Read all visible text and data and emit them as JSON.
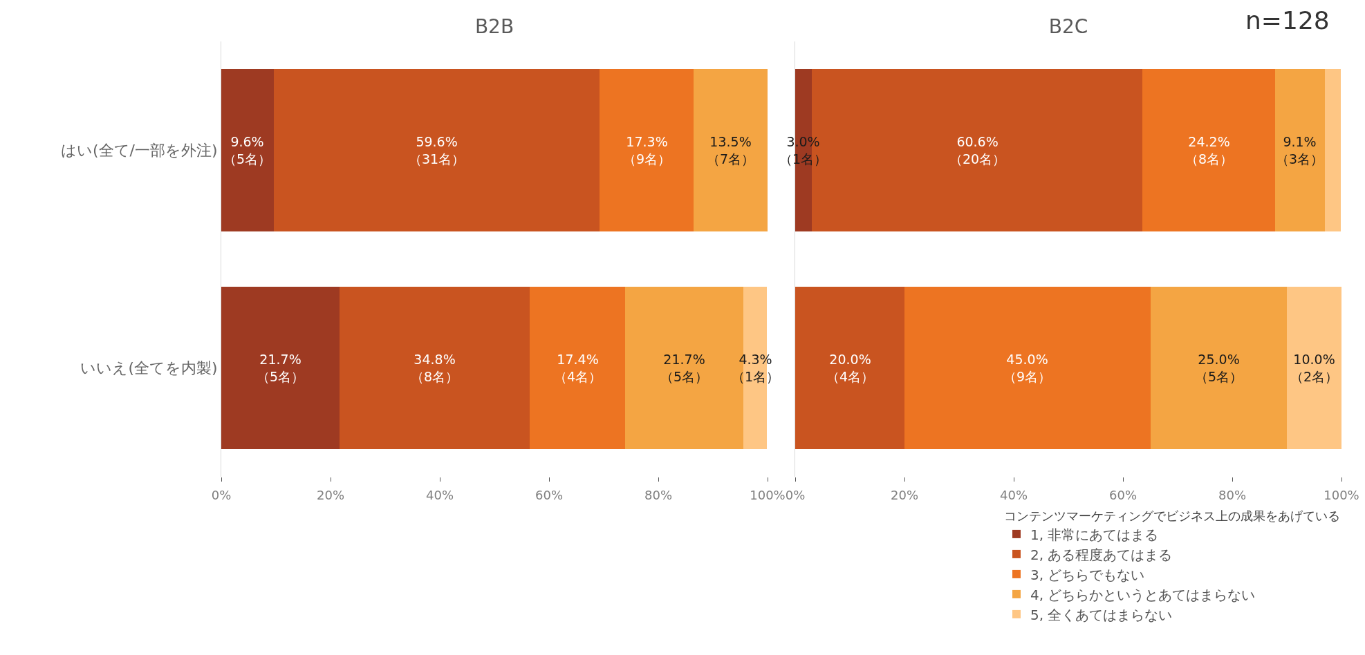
{
  "chart_data": [
    {
      "type": "bar",
      "title": "B2B",
      "orientation": "horizontal",
      "stacked": true,
      "categories": [
        "はい(全て/一部を外注)",
        "いいえ(全てを内製)"
      ],
      "series": [
        {
          "color": "#9e3a22",
          "values": [
            9.6,
            21.7
          ],
          "value_labels": [
            "9.6%\n（5名）",
            "21.7%\n（5名）"
          ]
        },
        {
          "color": "#c95420",
          "values": [
            59.6,
            34.8
          ],
          "value_labels": [
            "59.6%\n（31名）",
            "34.8%\n（8名）"
          ]
        },
        {
          "color": "#ed7422",
          "values": [
            17.3,
            17.4
          ],
          "value_labels": [
            "17.3%\n（9名）",
            "17.4%\n（4名）"
          ]
        },
        {
          "color": "#f4a543",
          "values": [
            13.5,
            21.7
          ],
          "value_labels": [
            "13.5%\n（7名）",
            "21.7%\n（5名）"
          ]
        },
        {
          "color": "#fec684",
          "values": [
            0,
            4.3
          ],
          "value_labels": [
            null,
            "4.3%\n（1名）"
          ]
        }
      ],
      "xlim": [
        0,
        100
      ],
      "xticks": [
        {
          "value": 0,
          "label": "0%"
        },
        {
          "value": 20,
          "label": "20%"
        },
        {
          "value": 40,
          "label": "40%"
        },
        {
          "value": 60,
          "label": "60%"
        },
        {
          "value": 80,
          "label": "80%"
        },
        {
          "value": 100,
          "label": "100%"
        }
      ],
      "legend": false
    },
    {
      "type": "bar",
      "title": "B2C",
      "orientation": "horizontal",
      "stacked": true,
      "categories": [
        "はい(全て/一部を外注)",
        "いいえ(全てを内製)"
      ],
      "series": [
        {
          "name": "1, 非常にあてはまる",
          "color": "#9e3a22",
          "values": [
            3.0,
            0
          ],
          "value_labels": [
            "3.0%\n（1名）",
            null
          ]
        },
        {
          "name": "2, ある程度あてはまる",
          "color": "#c95420",
          "values": [
            60.6,
            20.0
          ],
          "value_labels": [
            "60.6%\n（20名）",
            "20.0%\n（4名）"
          ]
        },
        {
          "name": "3, どちらでもない",
          "color": "#ed7422",
          "values": [
            24.2,
            45.0
          ],
          "value_labels": [
            "24.2%\n（8名）",
            "45.0%\n（9名）"
          ]
        },
        {
          "name": "4, どちらかというとあてはまらない",
          "color": "#f4a543",
          "values": [
            9.1,
            25.0
          ],
          "value_labels": [
            "9.1%\n（3名）",
            "25.0%\n（5名）"
          ]
        },
        {
          "name": "5, 全くあてはまらない",
          "color": "#fec684",
          "values": [
            3.0,
            10.0
          ],
          "value_labels": [
            null,
            "10.0%\n（2名）"
          ]
        }
      ],
      "xlim": [
        0,
        100
      ],
      "xticks": [
        {
          "value": 0,
          "label": "0%"
        },
        {
          "value": 20,
          "label": "20%"
        },
        {
          "value": 40,
          "label": "40%"
        },
        {
          "value": 60,
          "label": "60%"
        },
        {
          "value": 80,
          "label": "80%"
        },
        {
          "value": 100,
          "label": "100%"
        }
      ],
      "tick_labels": "x",
      "legend": "bottom right",
      "legend_title": "コンテンツマーケティングでビジネス上の成果をあげている",
      "annotations": [
        "n=128"
      ]
    }
  ]
}
